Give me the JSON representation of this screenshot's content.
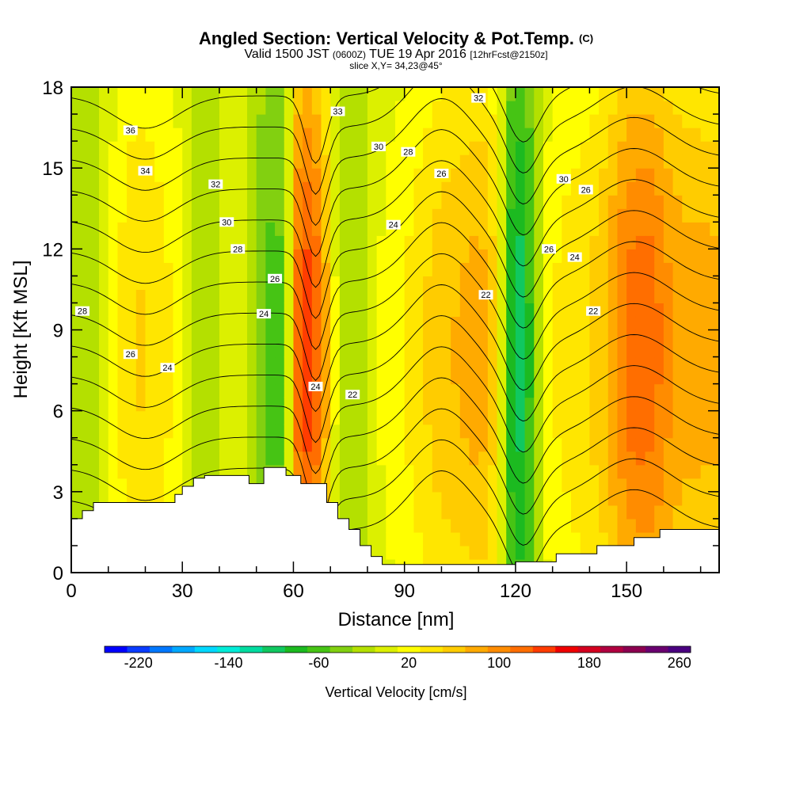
{
  "title": {
    "main": "Angled Section: Vertical Velocity & Pot.Temp.",
    "main_unit": "(C)",
    "valid_prefix": "Valid 1500 JST",
    "valid_utc": "(0600Z)",
    "valid_date": "TUE 19 Apr 2016",
    "forecast": "[12hrFcst@2150z]",
    "slice": "slice X,Y= 34,23@45°"
  },
  "chart_data": {
    "type": "heatmap",
    "xlabel": "Distance [nm]",
    "ylabel": "Height [Kft MSL]",
    "xlim": [
      0,
      175
    ],
    "ylim": [
      0,
      18
    ],
    "x_ticks": [
      0,
      30,
      60,
      90,
      120,
      150
    ],
    "y_ticks": [
      0,
      3,
      6,
      9,
      12,
      15,
      18
    ],
    "terrain": {
      "x": [
        0,
        3,
        3,
        6,
        6,
        28,
        28,
        30,
        30,
        33,
        33,
        36,
        36,
        48,
        48,
        52,
        52,
        58,
        58,
        62,
        62,
        69,
        69,
        72,
        72,
        75,
        75,
        78,
        78,
        81,
        81,
        84,
        84,
        87,
        87,
        90,
        90,
        120,
        120,
        123,
        123,
        131,
        131,
        142,
        142,
        152,
        152,
        159,
        159,
        162,
        162,
        175
      ],
      "y": [
        2.0,
        2.0,
        2.3,
        2.3,
        2.6,
        2.6,
        2.9,
        2.9,
        3.2,
        3.2,
        3.5,
        3.5,
        3.6,
        3.6,
        3.3,
        3.3,
        3.9,
        3.9,
        3.6,
        3.6,
        3.3,
        3.3,
        2.6,
        2.6,
        2.0,
        2.0,
        1.6,
        1.6,
        1.0,
        1.0,
        0.6,
        0.6,
        0.3,
        0.3,
        0.3,
        0.3,
        0.3,
        0.3,
        0.4,
        0.4,
        0.4,
        0.4,
        0.7,
        0.7,
        1.0,
        1.0,
        1.3,
        1.3,
        1.6,
        1.6,
        1.6,
        1.6
      ]
    },
    "colorbar": {
      "label": "Vertical Velocity [cm/s]",
      "tick_labels": [
        "-220",
        "-140",
        "-60",
        "20",
        "100",
        "180",
        "260"
      ],
      "colors": [
        "#0000ff",
        "#0a3cff",
        "#0078ff",
        "#00a8ff",
        "#00d8ff",
        "#00ecd8",
        "#00dca0",
        "#10c860",
        "#1cba20",
        "#46c414",
        "#82d010",
        "#b4e000",
        "#dcf000",
        "#ffff00",
        "#ffe600",
        "#ffcc00",
        "#ffaa00",
        "#ff8c00",
        "#ff6e00",
        "#ff3c00",
        "#f00000",
        "#d40020",
        "#b00040",
        "#8c0050",
        "#6a0070",
        "#4a0080"
      ]
    },
    "velocity_bands": [
      {
        "x": 5,
        "half_width": 9,
        "value": -15
      },
      {
        "x": 17,
        "half_width": 8,
        "value": 75
      },
      {
        "x": 27,
        "half_width": 7,
        "value": 40
      },
      {
        "x": 36,
        "half_width": 6,
        "value": -30
      },
      {
        "x": 45,
        "half_width": 7,
        "value": 20
      },
      {
        "x": 53,
        "half_width": 5,
        "value": -60
      },
      {
        "x": 66,
        "half_width": 5,
        "value": 170
      },
      {
        "x": 74,
        "half_width": 6,
        "value": -40
      },
      {
        "x": 86,
        "half_width": 10,
        "value": 20
      },
      {
        "x": 100,
        "half_width": 11,
        "value": 80
      },
      {
        "x": 111,
        "half_width": 6,
        "value": 95
      },
      {
        "x": 121,
        "half_width": 5,
        "value": -130
      },
      {
        "x": 130,
        "half_width": 7,
        "value": 40
      },
      {
        "x": 140,
        "half_width": 8,
        "value": 60
      },
      {
        "x": 153,
        "half_width": 8,
        "value": 140
      },
      {
        "x": 165,
        "half_width": 6,
        "value": 90
      }
    ],
    "theta_contours": [
      {
        "value": 22,
        "label_x": 112,
        "label_y": 10.3
      },
      {
        "value": 22,
        "label_x": 76,
        "label_y": 6.6
      },
      {
        "value": 22,
        "label_x": 141,
        "label_y": 9.7
      },
      {
        "value": 24,
        "label_x": 26,
        "label_y": 7.6
      },
      {
        "value": 24,
        "label_x": 52,
        "label_y": 9.6
      },
      {
        "value": 24,
        "label_x": 66,
        "label_y": 6.9
      },
      {
        "value": 24,
        "label_x": 87,
        "label_y": 12.9
      },
      {
        "value": 24,
        "label_x": 136,
        "label_y": 11.7
      },
      {
        "value": 26,
        "label_x": 16,
        "label_y": 8.1
      },
      {
        "value": 26,
        "label_x": 55,
        "label_y": 10.9
      },
      {
        "value": 26,
        "label_x": 100,
        "label_y": 14.8
      },
      {
        "value": 26,
        "label_x": 129,
        "label_y": 12.0
      },
      {
        "value": 26,
        "label_x": 139,
        "label_y": 14.2
      },
      {
        "value": 28,
        "label_x": 3,
        "label_y": 9.7
      },
      {
        "value": 28,
        "label_x": 45,
        "label_y": 12.0
      },
      {
        "value": 28,
        "label_x": 91,
        "label_y": 15.6
      },
      {
        "value": 30,
        "label_x": 42,
        "label_y": 13.0
      },
      {
        "value": 30,
        "label_x": 83,
        "label_y": 15.8
      },
      {
        "value": 30,
        "label_x": 133,
        "label_y": 14.6
      },
      {
        "value": 32,
        "label_x": 39,
        "label_y": 14.4
      },
      {
        "value": 32,
        "label_x": 110,
        "label_y": 17.6
      },
      {
        "value": 33,
        "label_x": 72,
        "label_y": 17.1
      },
      {
        "value": 34,
        "label_x": 20,
        "label_y": 14.9
      },
      {
        "value": 36,
        "label_x": 16,
        "label_y": 16.4
      }
    ]
  }
}
